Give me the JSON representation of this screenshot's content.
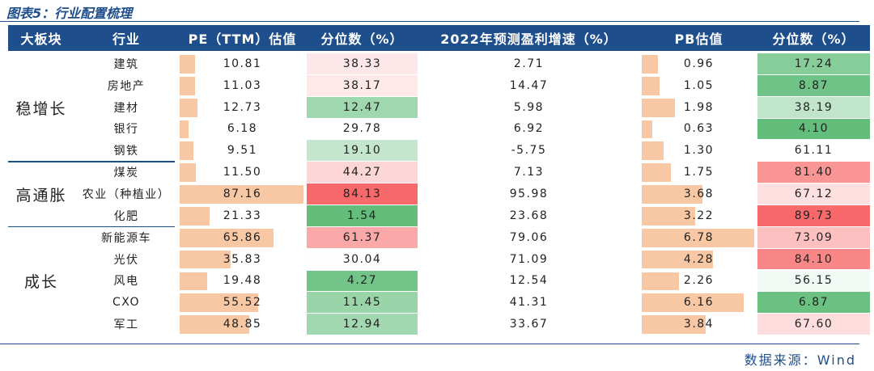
{
  "header": {
    "title": "图表5：行业配置梳理"
  },
  "table": {
    "columns": [
      "大板块",
      "行业",
      "PE（TTM）估值",
      "分位数（%）",
      "2022年预测盈利增速（%）",
      "PB估值",
      "分位数（%）"
    ],
    "groups": [
      {
        "name": "稳增长",
        "rows": [
          [
            "建筑",
            10.81,
            38.33,
            2.71,
            0.96,
            17.24
          ],
          [
            "房地产",
            11.03,
            38.17,
            14.47,
            1.05,
            8.87
          ],
          [
            "建材",
            12.73,
            12.47,
            5.98,
            1.98,
            38.19
          ],
          [
            "银行",
            6.18,
            29.78,
            6.92,
            0.63,
            {
              "value": 4.1,
              "label": "4.10"
            }
          ],
          [
            "钢铁",
            9.51,
            {
              "value": 19.1,
              "label": "19.10"
            },
            -5.75,
            {
              "value": 1.3,
              "label": "1.30"
            },
            61.11
          ]
        ]
      },
      {
        "name": "高通胀",
        "rows": [
          [
            "煤炭",
            {
              "value": 11.5,
              "label": "11.50"
            },
            44.27,
            7.13,
            1.75,
            {
              "value": 81.4,
              "label": "81.40"
            }
          ],
          [
            "农业（种植业）",
            87.16,
            84.13,
            95.98,
            3.68,
            67.12
          ],
          [
            "化肥",
            21.33,
            1.54,
            23.68,
            3.22,
            89.73
          ]
        ]
      },
      {
        "name": "成长",
        "rows": [
          [
            "新能源车",
            65.86,
            61.37,
            79.06,
            6.78,
            73.09
          ],
          [
            "光伏",
            35.83,
            30.04,
            71.09,
            4.28,
            {
              "value": 84.1,
              "label": "84.10"
            }
          ],
          [
            "风电",
            19.48,
            4.27,
            12.54,
            2.26,
            56.15
          ],
          [
            "CXO",
            55.52,
            11.45,
            41.31,
            6.16,
            6.87
          ],
          [
            "军工",
            48.85,
            12.94,
            33.67,
            3.84,
            {
              "value": 67.6,
              "label": "67.60"
            }
          ]
        ]
      }
    ]
  },
  "footer": {
    "source": "数据来源：Wind"
  }
}
